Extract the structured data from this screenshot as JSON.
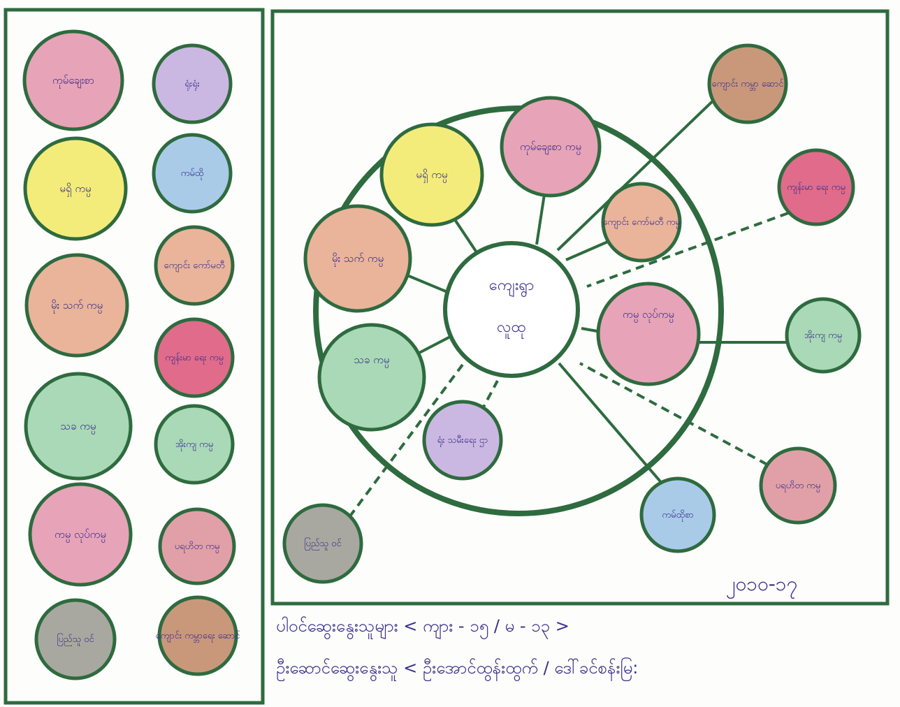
{
  "colors": {
    "border": "#2e6b3f",
    "text": "#3a2f8a",
    "pink": "#e7a3b7",
    "yellow": "#f4ec7a",
    "orange": "#e9b49a",
    "green": "#a9d9b6",
    "purple": "#cbb8e2",
    "blue": "#a9cbe8",
    "red": "#e06b8a",
    "grey": "#a8a8a0",
    "brown": "#c9987a",
    "rose": "#e1a0a8",
    "center": "#ffffff"
  },
  "legend": {
    "items": [
      {
        "label": "ကုမ်ချေးစာ",
        "color": "pink"
      },
      {
        "label": "ရုံးရုံး",
        "color": "purple"
      },
      {
        "label": "မရှိ ကမ္ပ",
        "color": "yellow"
      },
      {
        "label": "ကမ်ထို",
        "color": "blue"
      },
      {
        "label": "မိုး သက် ကမ္ပ",
        "color": "orange"
      },
      {
        "label": "ကျောင်း ကော်မတီ",
        "color": "orange"
      },
      {
        "label": "သခ ကမ္ပ",
        "color": "green"
      },
      {
        "label": "ကျန်းမာ ရေး ကမ္ပ",
        "color": "red"
      },
      {
        "label": "ကမ္ပ လုပ်ကမ္ပ",
        "color": "pink"
      },
      {
        "label": "အိုးကျ ကမ္ပ",
        "color": "green"
      },
      {
        "label": "ပြည်သူ ဝင်",
        "color": "grey"
      },
      {
        "label": "ပရဟိတ ကမ္ပ",
        "color": "rose"
      },
      {
        "label": "ကျောင်း ကမ္ဘာရေး ဆောင်",
        "color": "brown"
      }
    ]
  },
  "diagram": {
    "center_label_1": "ကျေးရွာ",
    "center_label_2": "လူထု",
    "nodes": [
      {
        "label": "မရှိ ကမ္ပ",
        "color": "yellow"
      },
      {
        "label": "ကုမ်ချေးစာ ကမ္ပ",
        "color": "pink"
      },
      {
        "label": "ကျောင်း ကော်မတီ ကမ္ပ",
        "color": "orange"
      },
      {
        "label": "ကမ္ပ လုပ်ကမ္ပ",
        "color": "pink"
      },
      {
        "label": "ရုံး သမီးရေး ဌာ",
        "color": "purple"
      },
      {
        "label": "သခ ကမ္ပ",
        "color": "green"
      },
      {
        "label": "မိုး သက် ကမ္ပ",
        "color": "orange"
      },
      {
        "label": "ကျောင်း ကမ္ဘာ ဆောင်",
        "color": "brown"
      },
      {
        "label": "ကျန်းမာ ရေး ကမ္ပ",
        "color": "red"
      },
      {
        "label": "အိုးကျ ကမ္ပ",
        "color": "green"
      },
      {
        "label": "ပရဟိတ ကမ္ပ",
        "color": "rose"
      },
      {
        "label": "ကမ်ထိုစာ",
        "color": "blue"
      },
      {
        "label": "ပြည်သူ ဝင်",
        "color": "grey"
      }
    ],
    "date": "၂၀၁၀-၁၇"
  },
  "footer": {
    "line1": "ပါဝင်ဆွေးနွေးသူများ < ကျား - ၁၅ / မ - ၁၃ >",
    "line2": "ဦးဆောင်ဆွေးနွေးသူ < ဦးအောင်ထွန်းထွက် / ဒေါ်ခင်စန်းမြ:"
  }
}
